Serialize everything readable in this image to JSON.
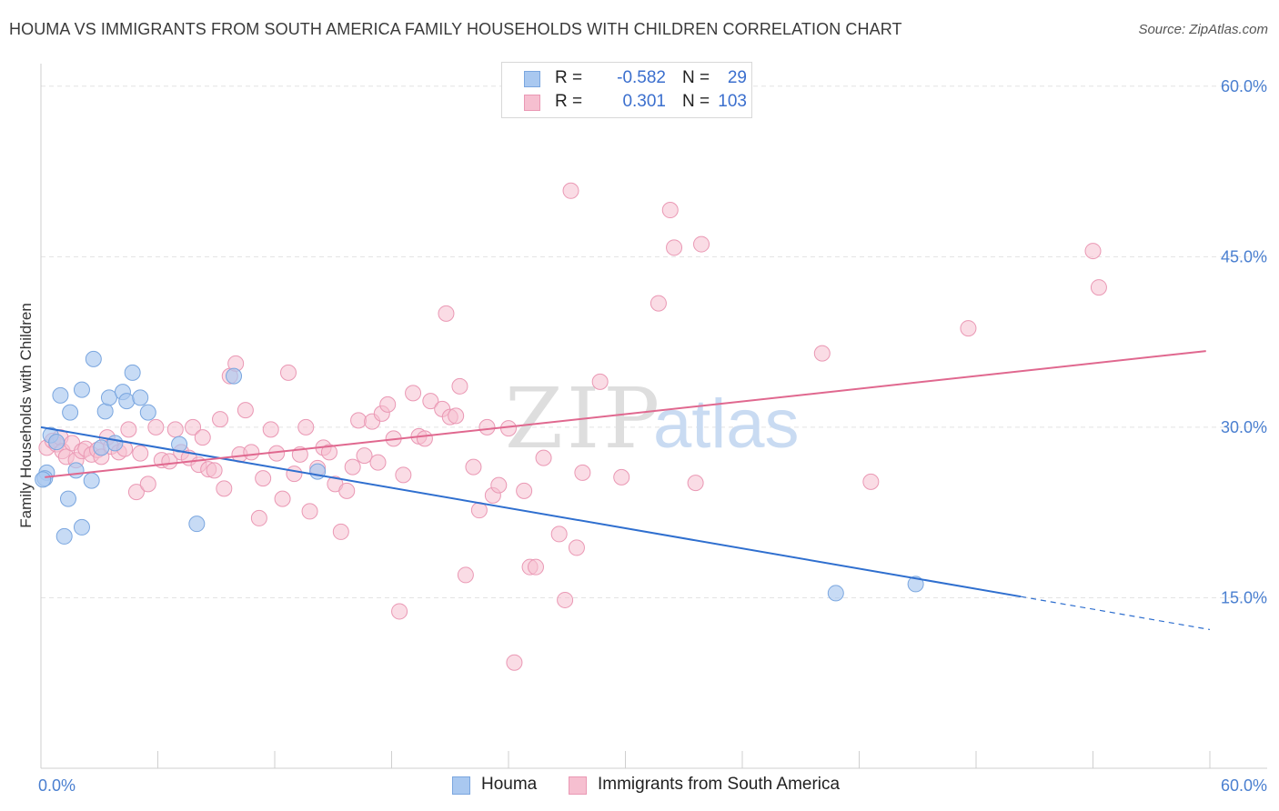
{
  "title": "HOUMA VS IMMIGRANTS FROM SOUTH AMERICA FAMILY HOUSEHOLDS WITH CHILDREN CORRELATION CHART",
  "source": "Source: ZipAtlas.com",
  "watermark": {
    "zip": "ZIP",
    "atlas": "atlas"
  },
  "legend": {
    "r_label": "R =",
    "n_label": "N =",
    "rows": [
      {
        "series": "Houma",
        "r": "-0.582",
        "n": "29"
      },
      {
        "series": "Immigrants from South America",
        "r": "0.301",
        "n": "103"
      }
    ]
  },
  "bottom_legend": [
    "Houma",
    "Immigrants from South America"
  ],
  "colors": {
    "houma_fill": "#a9c8f0",
    "houma_stroke": "#7aa6df",
    "houma_line": "#2f6fcf",
    "imm_fill": "#f6bfd0",
    "imm_stroke": "#ea98b4",
    "imm_line": "#e0688f",
    "tick": "#4a7fd0",
    "grid": "#e3e3e3"
  },
  "chart_data": {
    "type": "scatter",
    "title": "HOUMA VS IMMIGRANTS FROM SOUTH AMERICA FAMILY HOUSEHOLDS WITH CHILDREN CORRELATION CHART",
    "xlabel": "",
    "ylabel": "Family Households with Children",
    "xlim": [
      0,
      60
    ],
    "ylim": [
      0,
      61.5
    ],
    "x_tick_labels": [
      "0.0%",
      "60.0%"
    ],
    "y_ticks": [
      15,
      30,
      45,
      60
    ],
    "y_tick_labels": [
      "15.0%",
      "30.0%",
      "45.0%",
      "60.0%"
    ],
    "grid": true,
    "legend_position": "top-center",
    "series": [
      {
        "name": "Houma",
        "r": -0.582,
        "n": 29,
        "trend": {
          "x": [
            0,
            50.3
          ],
          "y": [
            30.0,
            15.1
          ],
          "dashed_to": [
            60,
            12.2
          ]
        },
        "points": [
          [
            0.3,
            26.0
          ],
          [
            0.2,
            25.5
          ],
          [
            0.5,
            29.3
          ],
          [
            0.8,
            28.7
          ],
          [
            1.0,
            32.8
          ],
          [
            1.2,
            20.4
          ],
          [
            1.4,
            23.7
          ],
          [
            1.5,
            31.3
          ],
          [
            1.8,
            26.2
          ],
          [
            2.1,
            21.2
          ],
          [
            2.1,
            33.3
          ],
          [
            2.6,
            25.3
          ],
          [
            2.7,
            36.0
          ],
          [
            3.1,
            28.2
          ],
          [
            3.3,
            31.4
          ],
          [
            3.5,
            32.6
          ],
          [
            3.8,
            28.6
          ],
          [
            4.2,
            33.1
          ],
          [
            4.4,
            32.3
          ],
          [
            4.7,
            34.8
          ],
          [
            5.1,
            32.6
          ],
          [
            5.5,
            31.3
          ],
          [
            7.1,
            28.5
          ],
          [
            8.0,
            21.5
          ],
          [
            9.9,
            34.5
          ],
          [
            14.2,
            26.1
          ],
          [
            40.8,
            15.4
          ],
          [
            44.9,
            16.2
          ],
          [
            0.1,
            25.4
          ]
        ]
      },
      {
        "name": "Immigrants from South America",
        "r": 0.301,
        "n": 103,
        "trend": {
          "x": [
            0.2,
            59.8
          ],
          "y": [
            25.6,
            36.7
          ]
        },
        "points": [
          [
            0.3,
            28.2
          ],
          [
            0.6,
            28.8
          ],
          [
            0.8,
            28.5
          ],
          [
            1.0,
            29.1
          ],
          [
            1.1,
            27.9
          ],
          [
            1.3,
            27.4
          ],
          [
            1.6,
            28.6
          ],
          [
            1.8,
            27.1
          ],
          [
            2.1,
            27.9
          ],
          [
            2.3,
            28.1
          ],
          [
            2.6,
            27.6
          ],
          [
            2.9,
            28.0
          ],
          [
            3.1,
            27.4
          ],
          [
            3.4,
            29.1
          ],
          [
            3.6,
            28.3
          ],
          [
            4.0,
            27.8
          ],
          [
            4.3,
            28.1
          ],
          [
            4.5,
            29.8
          ],
          [
            4.9,
            24.3
          ],
          [
            5.1,
            27.7
          ],
          [
            5.5,
            25.0
          ],
          [
            5.9,
            30.0
          ],
          [
            6.2,
            27.1
          ],
          [
            6.6,
            27.0
          ],
          [
            6.9,
            29.8
          ],
          [
            7.2,
            27.8
          ],
          [
            7.6,
            27.3
          ],
          [
            7.8,
            30.0
          ],
          [
            8.1,
            26.7
          ],
          [
            8.3,
            29.1
          ],
          [
            8.6,
            26.3
          ],
          [
            8.9,
            26.2
          ],
          [
            9.2,
            30.7
          ],
          [
            9.4,
            24.6
          ],
          [
            9.7,
            34.5
          ],
          [
            10.0,
            35.6
          ],
          [
            10.2,
            27.6
          ],
          [
            10.5,
            31.5
          ],
          [
            10.8,
            27.8
          ],
          [
            11.2,
            22.0
          ],
          [
            11.4,
            25.5
          ],
          [
            11.8,
            29.8
          ],
          [
            12.1,
            27.7
          ],
          [
            12.4,
            23.7
          ],
          [
            12.7,
            34.8
          ],
          [
            13.0,
            25.9
          ],
          [
            13.3,
            27.6
          ],
          [
            13.6,
            30.0
          ],
          [
            13.8,
            22.6
          ],
          [
            14.2,
            26.4
          ],
          [
            14.5,
            28.2
          ],
          [
            14.8,
            27.8
          ],
          [
            15.1,
            25.0
          ],
          [
            15.4,
            20.8
          ],
          [
            15.7,
            24.4
          ],
          [
            16.0,
            26.5
          ],
          [
            16.3,
            30.6
          ],
          [
            16.6,
            27.5
          ],
          [
            17.0,
            30.5
          ],
          [
            17.3,
            26.9
          ],
          [
            17.5,
            31.2
          ],
          [
            17.8,
            32.0
          ],
          [
            18.1,
            29.0
          ],
          [
            18.4,
            13.8
          ],
          [
            18.6,
            25.8
          ],
          [
            19.1,
            33.0
          ],
          [
            19.4,
            29.2
          ],
          [
            19.7,
            29.0
          ],
          [
            20.0,
            32.3
          ],
          [
            20.6,
            31.6
          ],
          [
            20.8,
            40.0
          ],
          [
            21.0,
            30.9
          ],
          [
            21.3,
            31.0
          ],
          [
            21.5,
            33.6
          ],
          [
            21.8,
            17.0
          ],
          [
            22.2,
            26.5
          ],
          [
            22.5,
            22.7
          ],
          [
            22.9,
            30.0
          ],
          [
            23.2,
            24.0
          ],
          [
            23.5,
            24.9
          ],
          [
            24.0,
            29.9
          ],
          [
            24.3,
            9.3
          ],
          [
            24.8,
            24.4
          ],
          [
            25.1,
            17.7
          ],
          [
            25.4,
            17.7
          ],
          [
            25.8,
            27.3
          ],
          [
            26.6,
            20.6
          ],
          [
            26.9,
            14.8
          ],
          [
            27.2,
            50.8
          ],
          [
            27.5,
            19.4
          ],
          [
            27.8,
            26.0
          ],
          [
            28.7,
            34.0
          ],
          [
            29.8,
            25.6
          ],
          [
            31.7,
            40.9
          ],
          [
            32.3,
            49.1
          ],
          [
            32.5,
            45.8
          ],
          [
            33.6,
            25.1
          ],
          [
            33.9,
            46.1
          ],
          [
            40.1,
            36.5
          ],
          [
            42.6,
            25.2
          ],
          [
            47.6,
            38.7
          ],
          [
            54.0,
            45.5
          ],
          [
            54.3,
            42.3
          ]
        ]
      }
    ]
  }
}
